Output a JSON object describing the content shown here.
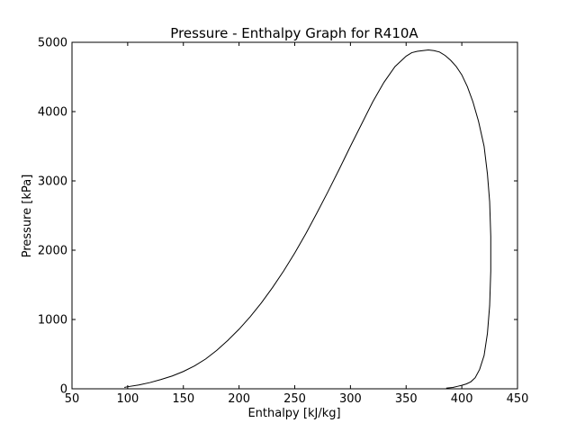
{
  "chart_data": {
    "type": "line",
    "title": "Pressure - Enthalpy Graph for R410A",
    "xlabel": "Enthalpy [kJ/kg]",
    "ylabel": "Pressure [kPa]",
    "xlim": [
      50,
      450
    ],
    "ylim": [
      0,
      5000
    ],
    "xticks": [
      50,
      100,
      150,
      200,
      250,
      300,
      350,
      400,
      450
    ],
    "yticks": [
      0,
      1000,
      2000,
      3000,
      4000,
      5000
    ],
    "grid": false,
    "series": [
      {
        "color": "#000000",
        "x": [
          97,
          100,
          110,
          120,
          130,
          140,
          150,
          160,
          170,
          180,
          190,
          200,
          210,
          220,
          230,
          240,
          250,
          260,
          270,
          280,
          290,
          300,
          310,
          320,
          330,
          340,
          350,
          355,
          360,
          365,
          370,
          375,
          380,
          385,
          390,
          395,
          400,
          405,
          410,
          415,
          420,
          423,
          425,
          426,
          426,
          425,
          423,
          420,
          416,
          412,
          408,
          404,
          400,
          396,
          392,
          386
        ],
        "y": [
          20,
          30,
          55,
          90,
          135,
          185,
          250,
          330,
          430,
          555,
          700,
          860,
          1040,
          1240,
          1460,
          1700,
          1960,
          2240,
          2540,
          2850,
          3170,
          3500,
          3820,
          4140,
          4420,
          4650,
          4800,
          4850,
          4870,
          4880,
          4890,
          4880,
          4860,
          4810,
          4740,
          4650,
          4530,
          4360,
          4140,
          3860,
          3500,
          3100,
          2700,
          2200,
          1700,
          1200,
          800,
          480,
          280,
          160,
          100,
          70,
          50,
          35,
          20,
          10
        ]
      }
    ]
  }
}
